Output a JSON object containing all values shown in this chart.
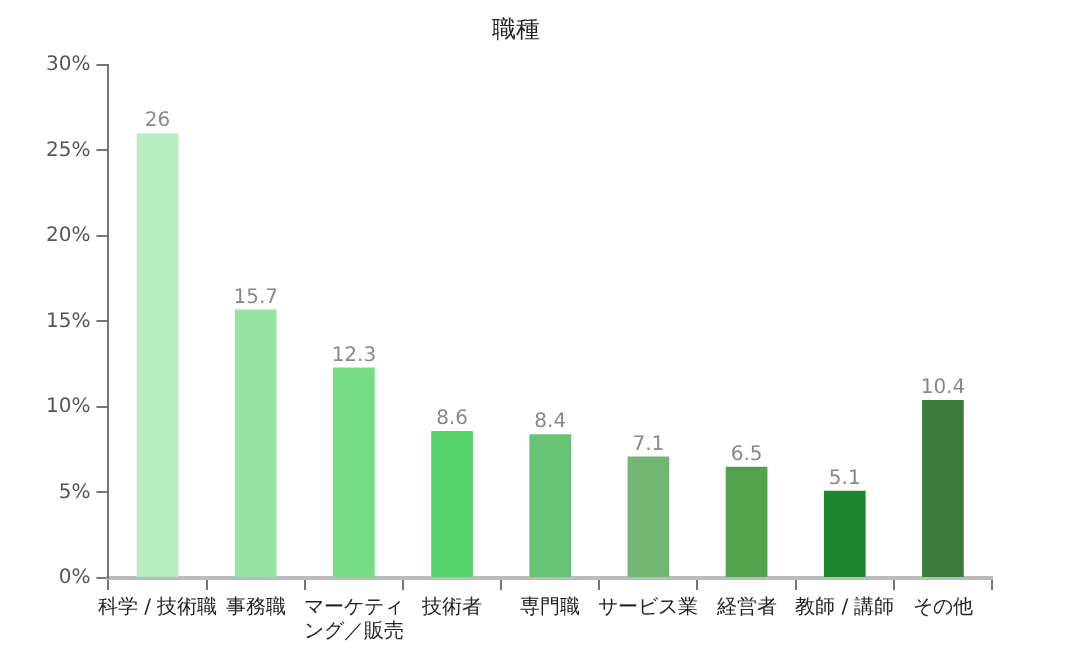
{
  "chart_data": {
    "type": "bar",
    "title": "職種",
    "categories": [
      "科学 / 技術職",
      "事務職",
      "マーケティング／販売",
      "技術者",
      "専門職",
      "サービス業",
      "経営者",
      "教師 / 講師",
      "その他"
    ],
    "values": [
      26,
      15.7,
      12.3,
      8.6,
      8.4,
      7.1,
      6.5,
      5.1,
      10.4
    ],
    "colors": [
      "#b9edc0",
      "#97e4a2",
      "#76dc86",
      "#55d46a",
      "#66c474",
      "#73b673",
      "#52a34e",
      "#1d872d",
      "#3d7b3d"
    ],
    "ylim": [
      0,
      30
    ],
    "yticks": [
      {
        "value": 0,
        "label": "0%"
      },
      {
        "value": 5,
        "label": "5%"
      },
      {
        "value": 10,
        "label": "10%"
      },
      {
        "value": 15,
        "label": "15%"
      },
      {
        "value": 20,
        "label": "20%"
      },
      {
        "value": 25,
        "label": "25%"
      },
      {
        "value": 30,
        "label": "30%"
      }
    ],
    "grid": false,
    "legend": false,
    "data_labels": true
  }
}
